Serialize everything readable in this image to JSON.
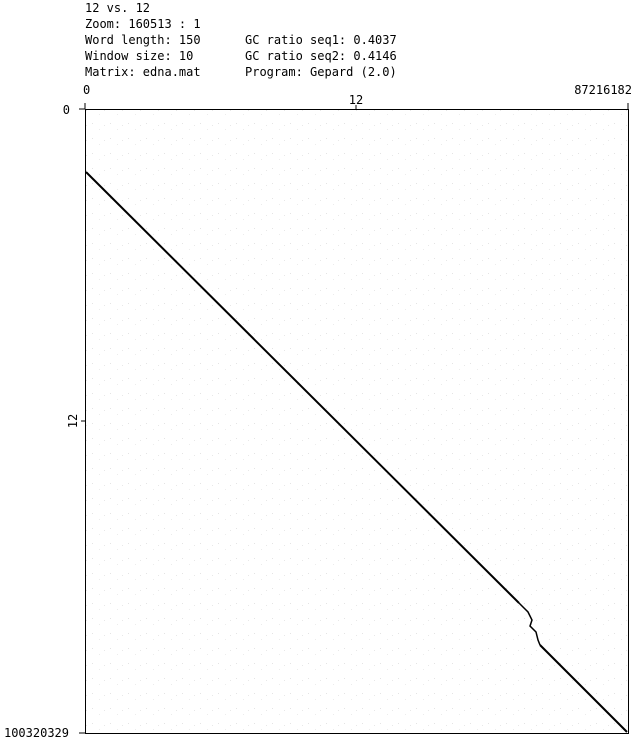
{
  "header": {
    "title": "12 vs. 12",
    "zoom": "Zoom: 160513 : 1",
    "word_length": "Word length: 150",
    "window_size": "Window size: 10",
    "matrix": "Matrix: edna.mat",
    "gc_seq1": "GC ratio seq1: 0.4037",
    "gc_seq2": "GC ratio seq2: 0.4146",
    "program": "Program: Gepard (2.0)"
  },
  "x_axis": {
    "start": "0",
    "label": "12",
    "end": "87216182"
  },
  "y_axis": {
    "start": "0",
    "label": "12",
    "end": "100320329"
  }
}
